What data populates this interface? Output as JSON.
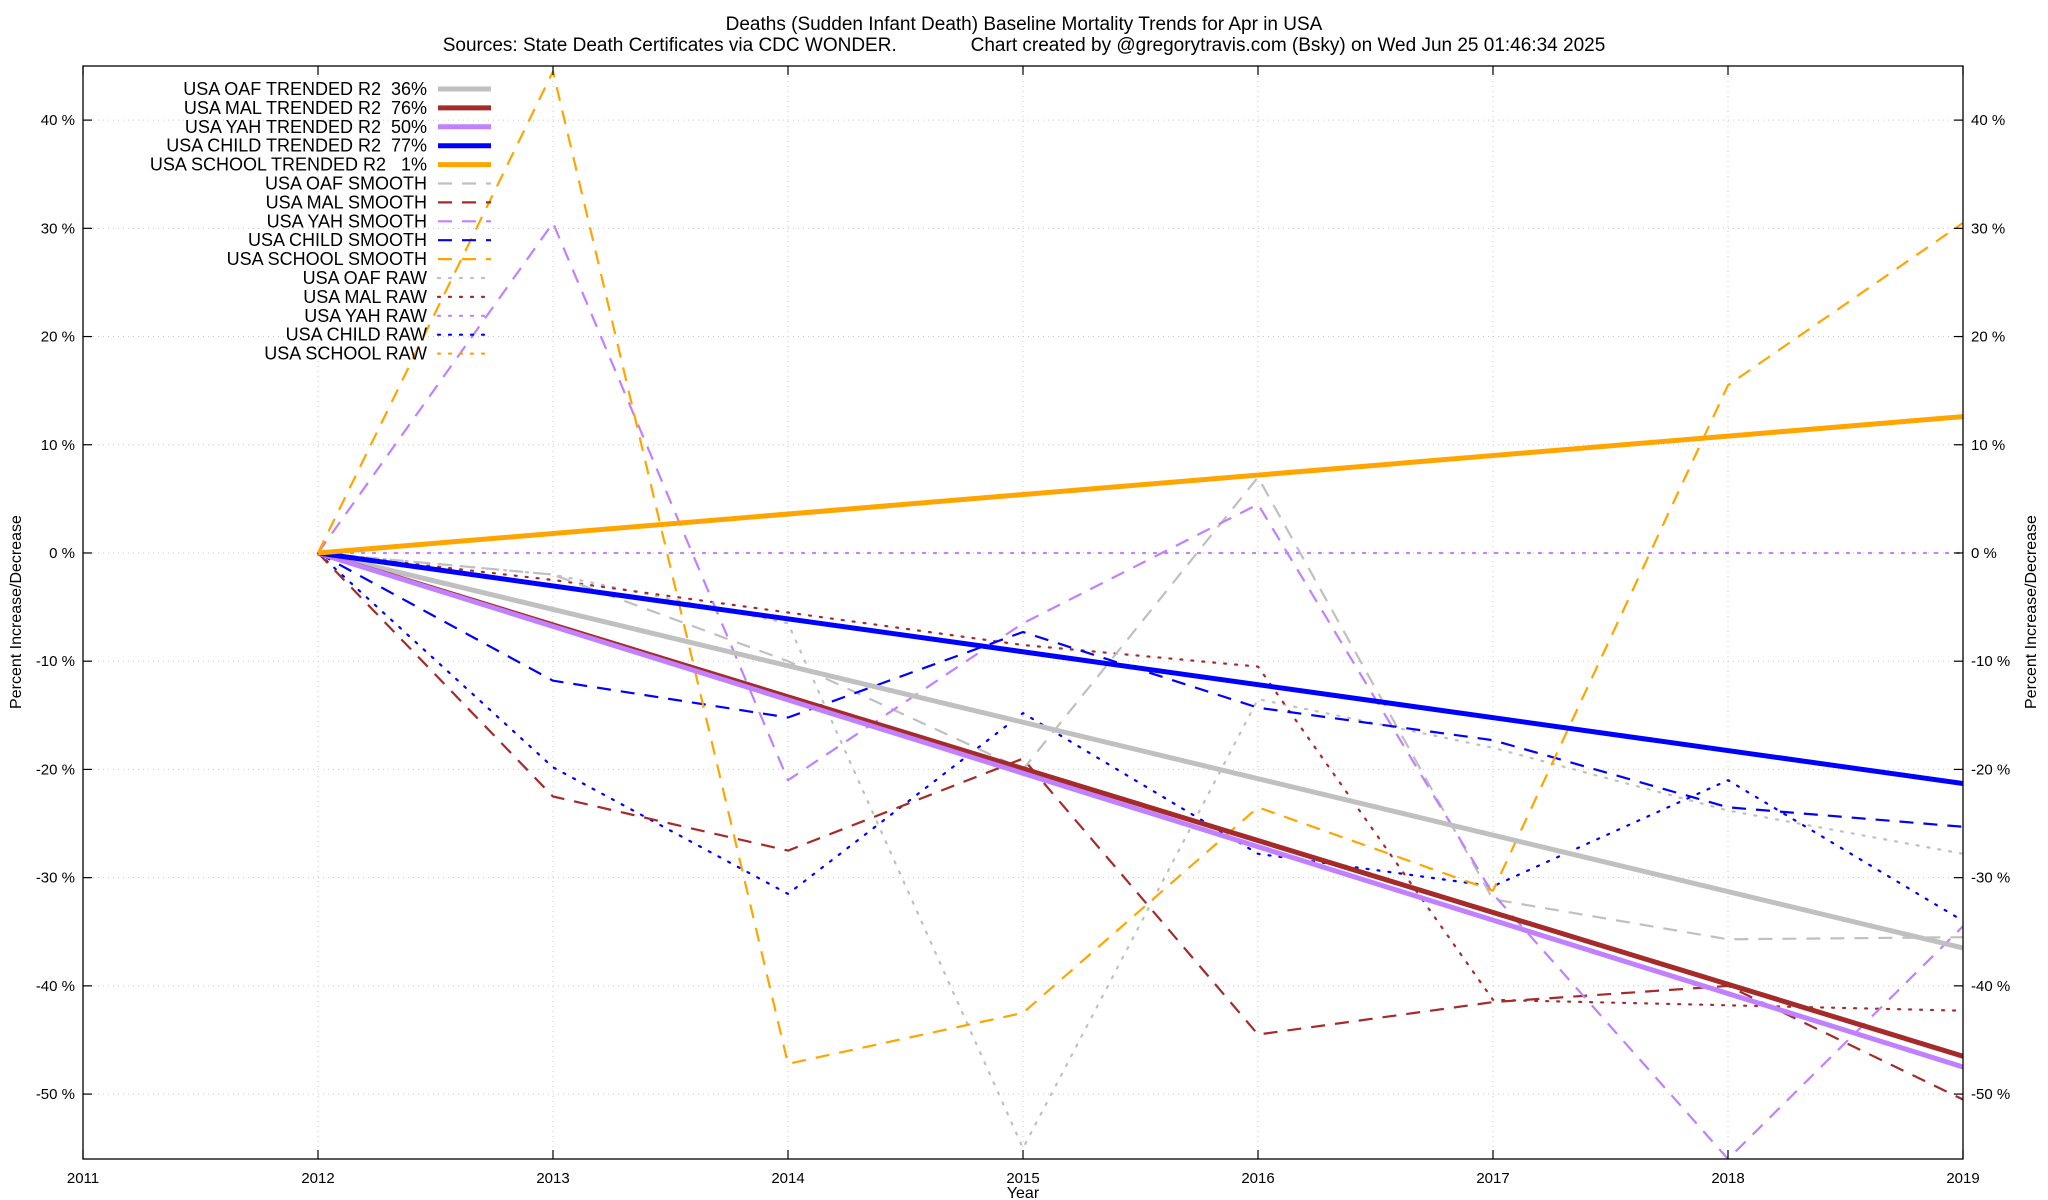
{
  "chart_data": {
    "type": "line",
    "title": "Deaths (Sudden Infant Death)  Baseline Mortality Trends for Apr in USA",
    "subtitle": "Sources: State Death Certificates via CDC WONDER.              Chart created by @gregorytravis.com (Bsky) on Wed Jun 25 01:46:34 2025",
    "xlabel": "Year",
    "ylabel": "Percent Increase/Decrease",
    "y2label": "Percent Increase/Decrease",
    "xlim": [
      2011,
      2019
    ],
    "ylim": [
      -56,
      45
    ],
    "x_ticks": [
      "2011",
      "2012",
      "2013",
      "2014",
      "2015",
      "2016",
      "2017",
      "2018",
      "2019"
    ],
    "y_ticks": [
      "-50 %",
      "-40 %",
      "-30 %",
      "-20 %",
      "-10 %",
      "0 %",
      "10 %",
      "20 %",
      "30 %",
      "40 %"
    ],
    "y_tick_values": [
      -50,
      -40,
      -30,
      -20,
      -10,
      0,
      10,
      20,
      30,
      40
    ],
    "grid": true,
    "legend_position": "top-left",
    "series": [
      {
        "name": "USA OAF TRENDED R2  36%",
        "color": "#c0c0c0",
        "style": "solid",
        "x": [
          2012,
          2019
        ],
        "values": [
          0,
          -36.5
        ]
      },
      {
        "name": "USA MAL TRENDED R2  76%",
        "color": "#a52a2a",
        "style": "solid",
        "x": [
          2012,
          2019
        ],
        "values": [
          0,
          -46.5
        ]
      },
      {
        "name": "USA YAH TRENDED R2  50%",
        "color": "#c080ff",
        "style": "solid",
        "x": [
          2012,
          2019
        ],
        "values": [
          0,
          -47.5
        ]
      },
      {
        "name": "USA CHILD TRENDED R2  77%",
        "color": "#0000ff",
        "style": "solid",
        "x": [
          2012,
          2019
        ],
        "values": [
          0,
          -21.3
        ]
      },
      {
        "name": "USA SCHOOL TRENDED R2   1%",
        "color": "#ffa500",
        "style": "solid",
        "x": [
          2012,
          2019
        ],
        "values": [
          0,
          12.6
        ]
      },
      {
        "name": "USA OAF SMOOTH",
        "color": "#c0c0c0",
        "style": "dashed",
        "x": [
          2012,
          2013,
          2014,
          2015,
          2016,
          2017,
          2018,
          2019
        ],
        "values": [
          0,
          -2,
          -10,
          -20,
          7,
          -32,
          -35.7,
          -35.5
        ]
      },
      {
        "name": "USA MAL SMOOTH",
        "color": "#a52a2a",
        "style": "dashed",
        "x": [
          2012,
          2013,
          2014,
          2015,
          2016,
          2017,
          2018,
          2019
        ],
        "values": [
          0,
          -22.5,
          -27.5,
          -19,
          -44.5,
          -41.5,
          -40,
          -50.5
        ]
      },
      {
        "name": "USA YAH SMOOTH",
        "color": "#c080ff",
        "style": "dashed",
        "x": [
          2012,
          2013,
          2014,
          2015,
          2016,
          2017,
          2018,
          2019
        ],
        "values": [
          0,
          30.5,
          -21,
          -6.5,
          4.5,
          -31.5,
          -56,
          -34.5
        ]
      },
      {
        "name": "USA CHILD SMOOTH",
        "color": "#0000ff",
        "style": "dashed",
        "x": [
          2012,
          2013,
          2014,
          2015,
          2016,
          2017,
          2018,
          2019
        ],
        "values": [
          0,
          -11.8,
          -15.2,
          -7.3,
          -14.3,
          -17.3,
          -23.5,
          -25.3
        ]
      },
      {
        "name": "USA SCHOOL SMOOTH",
        "color": "#ffa500",
        "style": "dashed",
        "x": [
          2012,
          2013,
          2014,
          2015,
          2016,
          2017,
          2018,
          2019
        ],
        "values": [
          0,
          44.5,
          -47.2,
          -42.5,
          -23.5,
          -31.2,
          15.5,
          30.5
        ]
      },
      {
        "name": "USA OAF RAW",
        "color": "#c0c0c0",
        "style": "dotted",
        "x": [
          2012,
          2013,
          2014,
          2015,
          2016,
          2017,
          2018,
          2019
        ],
        "values": [
          0,
          -2,
          -6.5,
          -55,
          -13.5,
          -18,
          -23.8,
          -27.8
        ]
      },
      {
        "name": "USA MAL RAW",
        "color": "#a52a2a",
        "style": "dotted",
        "x": [
          2012,
          2013,
          2014,
          2015,
          2016,
          2017,
          2018,
          2019
        ],
        "values": [
          0,
          -2.5,
          -5.5,
          -8.5,
          -10.5,
          -41.3,
          -41.8,
          -42.3
        ]
      },
      {
        "name": "USA YAH RAW",
        "color": "#c080ff",
        "style": "dotted",
        "x": [
          2012,
          2013,
          2014,
          2015,
          2016,
          2017,
          2018,
          2019
        ],
        "values": [
          0,
          0,
          0,
          0,
          0,
          0,
          0,
          0
        ]
      },
      {
        "name": "USA CHILD RAW",
        "color": "#0000ff",
        "style": "dotted",
        "x": [
          2012,
          2013,
          2014,
          2015,
          2016,
          2017,
          2018,
          2019
        ],
        "values": [
          0,
          -19.8,
          -31.5,
          -14.8,
          -27.8,
          -30.8,
          -21,
          -34
        ]
      },
      {
        "name": "USA SCHOOL RAW",
        "color": "#ffa500",
        "style": "dotted",
        "x": [
          2012
        ],
        "values": [
          0
        ]
      }
    ]
  }
}
